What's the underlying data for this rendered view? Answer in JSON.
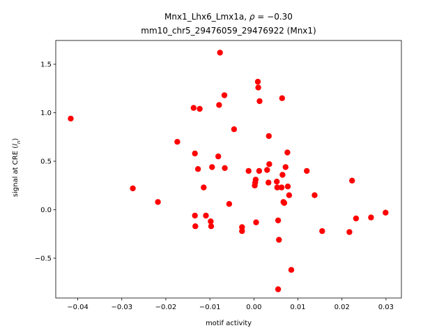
{
  "chart_data": {
    "type": "scatter",
    "title_line1_prefix": "Mnx1_Lhx6_Lmx1a, ",
    "title_rho_symbol": "ρ",
    "title_rho_value": " = −0.30",
    "title_line2": "mm10_chr5_29476059_29476922 (Mnx1)",
    "xlabel": "motif activity",
    "ylabel_prefix": "signal at CRE (",
    "ylabel_symbol": "l",
    "ylabel_sub": "n",
    "ylabel_suffix": ")",
    "xlim": [
      -0.045,
      0.0335
    ],
    "ylim": [
      -0.91,
      1.745
    ],
    "xticks": [
      -0.04,
      -0.03,
      -0.02,
      -0.01,
      0.0,
      0.01,
      0.02,
      0.03
    ],
    "xtick_labels": [
      "−0.04",
      "−0.03",
      "−0.02",
      "−0.01",
      "0.00",
      "0.01",
      "0.02",
      "0.03"
    ],
    "yticks": [
      -0.5,
      0.0,
      0.5,
      1.0,
      1.5
    ],
    "ytick_labels": [
      "−0.5",
      "0.0",
      "0.5",
      "1.0",
      "1.5"
    ],
    "marker_color": "#ff0000",
    "points": [
      {
        "x": -0.0416,
        "y": 0.94
      },
      {
        "x": -0.0275,
        "y": 0.22
      },
      {
        "x": -0.0218,
        "y": 0.08
      },
      {
        "x": -0.0174,
        "y": 0.7
      },
      {
        "x": -0.0137,
        "y": 1.05
      },
      {
        "x": -0.0134,
        "y": 0.58
      },
      {
        "x": -0.0134,
        "y": -0.06
      },
      {
        "x": -0.0133,
        "y": -0.17
      },
      {
        "x": -0.0127,
        "y": 0.42
      },
      {
        "x": -0.0123,
        "y": 1.04
      },
      {
        "x": -0.0114,
        "y": 0.23
      },
      {
        "x": -0.0109,
        "y": -0.06
      },
      {
        "x": -0.0098,
        "y": -0.12
      },
      {
        "x": -0.0097,
        "y": -0.17
      },
      {
        "x": -0.0095,
        "y": 0.44
      },
      {
        "x": -0.0081,
        "y": 0.55
      },
      {
        "x": -0.0079,
        "y": 1.08
      },
      {
        "x": -0.0077,
        "y": 1.62
      },
      {
        "x": -0.0067,
        "y": 1.18
      },
      {
        "x": -0.0066,
        "y": 0.43
      },
      {
        "x": -0.0056,
        "y": 0.06
      },
      {
        "x": -0.0045,
        "y": 0.83
      },
      {
        "x": -0.0027,
        "y": -0.18
      },
      {
        "x": -0.0027,
        "y": -0.22
      },
      {
        "x": -0.0012,
        "y": 0.4
      },
      {
        "x": 0.0002,
        "y": 0.25
      },
      {
        "x": 0.0003,
        "y": 0.28
      },
      {
        "x": 0.0004,
        "y": 0.31
      },
      {
        "x": 0.0005,
        "y": -0.13
      },
      {
        "x": 0.0009,
        "y": 1.32
      },
      {
        "x": 0.001,
        "y": 1.26
      },
      {
        "x": 0.0012,
        "y": 0.4
      },
      {
        "x": 0.0013,
        "y": 1.12
      },
      {
        "x": 0.003,
        "y": 0.41
      },
      {
        "x": 0.0033,
        "y": 0.28
      },
      {
        "x": 0.0034,
        "y": 0.76
      },
      {
        "x": 0.0035,
        "y": 0.47
      },
      {
        "x": 0.0052,
        "y": 0.29
      },
      {
        "x": 0.0053,
        "y": 0.23
      },
      {
        "x": 0.0055,
        "y": -0.11
      },
      {
        "x": 0.0055,
        "y": -0.82
      },
      {
        "x": 0.0057,
        "y": -0.31
      },
      {
        "x": 0.0063,
        "y": 0.23
      },
      {
        "x": 0.0064,
        "y": 1.15
      },
      {
        "x": 0.0065,
        "y": 0.36
      },
      {
        "x": 0.0067,
        "y": 0.08
      },
      {
        "x": 0.0069,
        "y": 0.07
      },
      {
        "x": 0.0072,
        "y": 0.44
      },
      {
        "x": 0.0076,
        "y": 0.59
      },
      {
        "x": 0.0077,
        "y": 0.24
      },
      {
        "x": 0.008,
        "y": 0.15
      },
      {
        "x": 0.0085,
        "y": -0.62
      },
      {
        "x": 0.012,
        "y": 0.4
      },
      {
        "x": 0.0138,
        "y": 0.15
      },
      {
        "x": 0.0155,
        "y": -0.22
      },
      {
        "x": 0.0217,
        "y": -0.23
      },
      {
        "x": 0.0223,
        "y": 0.3
      },
      {
        "x": 0.0232,
        "y": -0.09
      },
      {
        "x": 0.0266,
        "y": -0.08
      },
      {
        "x": 0.0299,
        "y": -0.03
      }
    ]
  }
}
